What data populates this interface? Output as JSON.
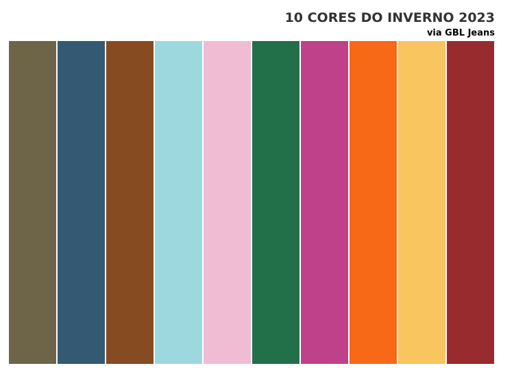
{
  "header": {
    "title": "10 CORES DO INVERNO 2023",
    "subtitle": "via GBL Jeans"
  },
  "palette": {
    "colors": [
      "#6e6549",
      "#335a72",
      "#874b22",
      "#9dd8df",
      "#f0bcd4",
      "#21704a",
      "#bf418a",
      "#f76916",
      "#f9c55e",
      "#982b2e"
    ]
  }
}
